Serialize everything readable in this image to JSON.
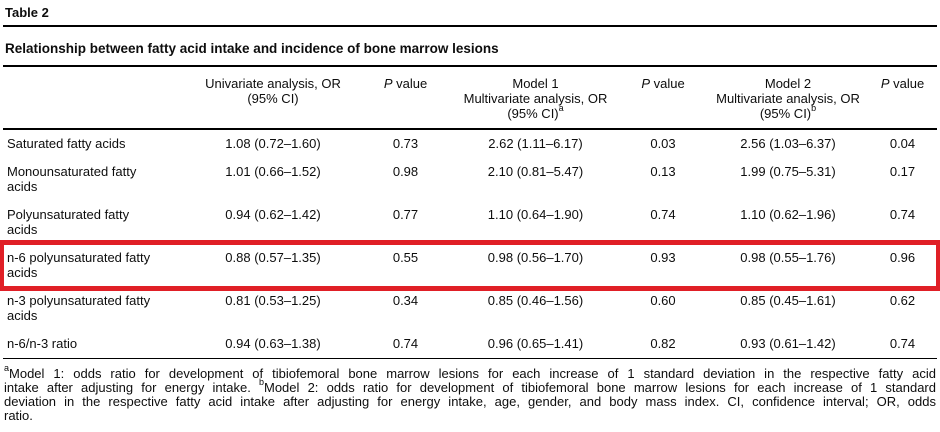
{
  "header": {
    "table_label": "Table 2",
    "title": "Relationship between fatty acid intake and incidence of bone marrow lesions"
  },
  "table": {
    "highlight_color": "#e01f26",
    "columns": [
      {
        "id": "factor",
        "lines": []
      },
      {
        "id": "univariate",
        "lines": [
          {
            "text": "Univariate analysis, OR"
          },
          {
            "text": "(95% CI)"
          }
        ]
      },
      {
        "id": "p-value-1",
        "lines": [
          {
            "italic": "P",
            "text": " value"
          }
        ]
      },
      {
        "id": "model1",
        "lines": [
          {
            "text": "Model 1"
          },
          {
            "text": "Multivariate analysis, OR"
          },
          {
            "text": "(95% CI)",
            "sup": "a"
          }
        ]
      },
      {
        "id": "p-value-2",
        "lines": [
          {
            "italic": "P",
            "text": " value"
          }
        ]
      },
      {
        "id": "model2",
        "lines": [
          {
            "text": "Model 2"
          },
          {
            "text": "Multivariate analysis, OR"
          },
          {
            "text": "(95% CI)",
            "sup": "b"
          }
        ]
      },
      {
        "id": "p-value-3",
        "lines": [
          {
            "italic": "P",
            "text": " value"
          }
        ]
      }
    ],
    "rows": [
      {
        "label": "Saturated fatty acids",
        "values": [
          "1.08 (0.72–1.60)",
          "0.73",
          "2.62 (1.11–6.17)",
          "0.03",
          "2.56 (1.03–6.37)",
          "0.04"
        ],
        "highlighted": false
      },
      {
        "label": "Monounsaturated fatty acids",
        "values": [
          "1.01 (0.66–1.52)",
          "0.98",
          "2.10 (0.81–5.47)",
          "0.13",
          "1.99 (0.75–5.31)",
          "0.17"
        ],
        "highlighted": false
      },
      {
        "label": "Polyunsaturated fatty acids",
        "values": [
          "0.94 (0.62–1.42)",
          "0.77",
          "1.10 (0.64–1.90)",
          "0.74",
          "1.10 (0.62–1.96)",
          "0.74"
        ],
        "highlighted": false
      },
      {
        "label": "n-6 polyunsaturated fatty acids",
        "values": [
          "0.88 (0.57–1.35)",
          "0.55",
          "0.98 (0.56–1.70)",
          "0.93",
          "0.98 (0.55–1.76)",
          "0.96"
        ],
        "highlighted": true
      },
      {
        "label": "n-3 polyunsaturated fatty acids",
        "values": [
          "0.81 (0.53–1.25)",
          "0.34",
          "0.85 (0.46–1.56)",
          "0.60",
          "0.85 (0.45–1.61)",
          "0.62"
        ],
        "highlighted": false
      },
      {
        "label": "n-6/n-3 ratio",
        "values": [
          "0.94 (0.63–1.38)",
          "0.74",
          "0.96 (0.65–1.41)",
          "0.82",
          "0.93 (0.61–1.42)",
          "0.74"
        ],
        "highlighted": false
      }
    ]
  },
  "footnote": {
    "lines": [
      {
        "sup": "a",
        "text": "Model 1: odds ratio for development of tibiofemoral bone marrow lesions for each increase of 1 standard deviation in the respective fatty acid"
      },
      {
        "pre": "intake after adjusting for energy intake. ",
        "sup": "b",
        "text": "Model 2: odds ratio for development of tibiofemoral bone marrow lesions for each increase of 1 standard"
      },
      {
        "text": "deviation in the respective fatty acid intake after adjusting for energy intake, age, gender, and body mass index. CI, confidence interval; OR, odds"
      },
      {
        "text": "ratio."
      }
    ]
  }
}
